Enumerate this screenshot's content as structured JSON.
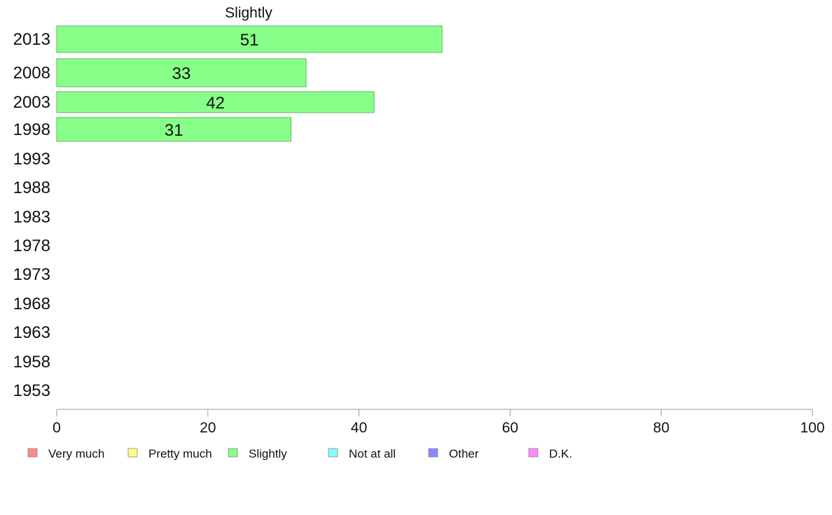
{
  "chart_data": {
    "type": "bar",
    "orientation": "horizontal",
    "title": "Slightly",
    "categories": [
      "2013",
      "2008",
      "2003",
      "1998",
      "1993",
      "1988",
      "1983",
      "1978",
      "1973",
      "1968",
      "1963",
      "1958",
      "1953"
    ],
    "series": [
      {
        "name": "Slightly",
        "values": [
          51,
          33,
          42,
          31,
          null,
          null,
          null,
          null,
          null,
          null,
          null,
          null,
          null
        ],
        "color": "#88ff88"
      }
    ],
    "xlim": [
      0,
      100
    ],
    "xticks": [
      0,
      20,
      40,
      60,
      80,
      100
    ],
    "grid": false,
    "legend_position": "bottom-left",
    "legend": [
      {
        "label": "Very much",
        "color": "#ff8888"
      },
      {
        "label": "Pretty much",
        "color": "#ffff88"
      },
      {
        "label": "Slightly",
        "color": "#88ff88"
      },
      {
        "label": "Not at all",
        "color": "#88ffff"
      },
      {
        "label": "Other",
        "color": "#8888ff"
      },
      {
        "label": "D.K.",
        "color": "#ff88ff"
      }
    ]
  }
}
